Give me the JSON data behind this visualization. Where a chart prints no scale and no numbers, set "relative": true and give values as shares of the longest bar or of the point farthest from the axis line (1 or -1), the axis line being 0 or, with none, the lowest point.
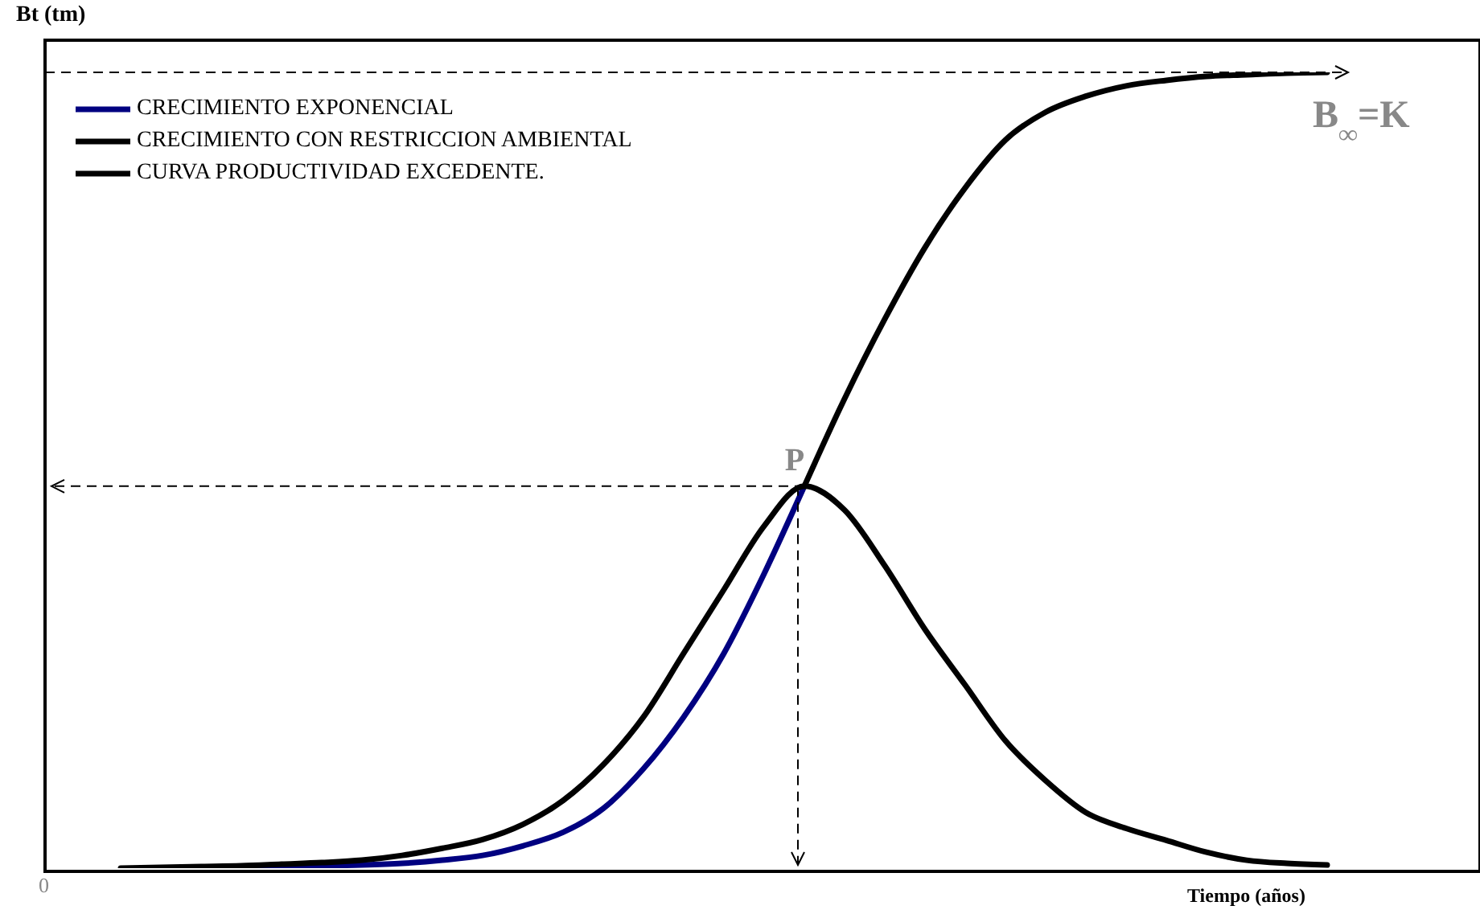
{
  "chart_data": {
    "type": "line",
    "relative": true,
    "ylabel": "Bt (tm)",
    "xlabel": "Tiempo (años)",
    "categories": [
      null,
      null,
      null,
      null,
      null,
      null,
      null,
      null,
      null,
      null,
      null,
      null,
      null,
      null,
      null,
      null,
      null,
      null,
      null,
      null,
      null,
      null,
      null,
      null,
      null,
      null,
      null,
      null,
      null,
      null,
      null
    ],
    "series": [
      {
        "name": "CRECIMIENTO EXPONENCIAL",
        "color": "#000080",
        "values": [
          null,
          null,
          0.001,
          0.001,
          0.002,
          0.003,
          0.004,
          0.006,
          0.01,
          0.016,
          0.028,
          0.045,
          0.075,
          0.125,
          0.19,
          0.27,
          0.37,
          0.48,
          null,
          null,
          null,
          null,
          null,
          null,
          null,
          null,
          null,
          null,
          null,
          null,
          null
        ]
      },
      {
        "name": "CRECIMIENTO CON RESTRICCION AMBIENTAL",
        "color": "#000000",
        "values": [
          null,
          null,
          null,
          null,
          null,
          null,
          null,
          null,
          null,
          null,
          null,
          null,
          null,
          null,
          null,
          null,
          null,
          0.48,
          0.59,
          0.69,
          0.78,
          0.855,
          0.915,
          0.95,
          0.97,
          0.983,
          0.99,
          0.995,
          0.997,
          0.999,
          1
        ]
      },
      {
        "name": "CURVA PRODUCTIVIDAD EXCEDENTE.",
        "color": "#000000",
        "values": [
          0,
          0.001,
          0.002,
          0.003,
          0.005,
          0.007,
          0.01,
          0.016,
          0.025,
          0.036,
          0.055,
          0.085,
          0.13,
          0.19,
          0.27,
          0.35,
          0.43,
          0.48,
          0.45,
          0.38,
          0.3,
          0.23,
          0.16,
          0.11,
          0.07,
          0.05,
          0.035,
          0.02,
          0.01,
          0.006,
          0.004
        ]
      }
    ],
    "ref_lines": [
      {
        "axis": "y",
        "value": 1,
        "label": "B$_{∞}$=K",
        "line_style": "dashed",
        "color": "#000000"
      },
      {
        "axis": "y",
        "value": 0.48,
        "label": "P",
        "line_style": "dashed",
        "color": "#000000"
      }
    ],
    "annotations": [
      "0"
    ],
    "legend": "top left",
    "grid": false,
    "marker": "none",
    "line_style": "solid"
  }
}
